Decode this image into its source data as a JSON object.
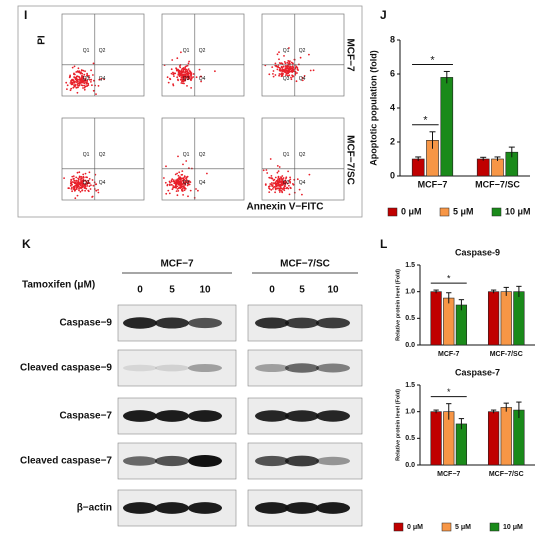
{
  "panel_labels": [
    "I",
    "J",
    "K",
    "L"
  ],
  "flow": {
    "y_label": "PI",
    "x_label": "Annexin V−FITC",
    "rows": [
      "MCF−7",
      "MCF−7/SC"
    ],
    "quadrants": [
      "Q1",
      "Q2",
      "Q3",
      "Q4"
    ]
  },
  "blot": {
    "treatment_label": "Tamoxifen (μM)",
    "groups": [
      "MCF−7",
      "MCF−7/SC"
    ],
    "doses": [
      "0",
      "5",
      "10"
    ],
    "bands": [
      "Caspase−9",
      "Cleaved caspase−9",
      "Caspase−7",
      "Cleaved caspase−7",
      "β−actin"
    ]
  },
  "chart_data": [
    {
      "type": "bar",
      "y_label": "Apoptotic population (fold)",
      "categories": [
        "MCF−7",
        "MCF−7/SC"
      ],
      "ylim": [
        0,
        8
      ],
      "yticks": [
        0,
        2,
        4,
        6,
        8
      ],
      "legend": "bottom",
      "series": [
        {
          "name": "0 μM",
          "color": "#c00000",
          "values": [
            1.0,
            1.0
          ],
          "errors": [
            0.12,
            0.1
          ]
        },
        {
          "name": "5 μM",
          "color": "#f79646",
          "values": [
            2.1,
            1.0
          ],
          "errors": [
            0.5,
            0.12
          ]
        },
        {
          "name": "10 μM",
          "color": "#1a8a1a",
          "values": [
            5.8,
            1.4
          ],
          "errors": [
            0.35,
            0.3
          ]
        }
      ],
      "annotations": [
        {
          "text": "*",
          "category": 0,
          "series": [
            0,
            1
          ]
        },
        {
          "text": "*",
          "category": 0,
          "series": [
            0,
            2
          ]
        }
      ]
    },
    {
      "type": "bar",
      "title": "Caspase-9",
      "y_label": "Relative protein level (Fold)",
      "categories": [
        "MCF-7",
        "MCF-7/SC"
      ],
      "ylim": [
        0,
        1.5
      ],
      "yticks": [
        {
          "value": 0,
          "label": "0.0"
        },
        {
          "value": 0.5,
          "label": "0.5"
        },
        {
          "value": 1,
          "label": "1.0"
        },
        {
          "value": 1.5,
          "label": "1.5"
        }
      ],
      "series": [
        {
          "color": "#c00000",
          "values": [
            1.0,
            1.0
          ],
          "errors": [
            0.03,
            0.03
          ]
        },
        {
          "color": "#f79646",
          "values": [
            0.88,
            1.0
          ],
          "errors": [
            0.1,
            0.08
          ]
        },
        {
          "color": "#1a8a1a",
          "values": [
            0.75,
            1.0
          ],
          "errors": [
            0.1,
            0.1
          ]
        }
      ],
      "annotations": [
        {
          "text": "*",
          "category": 0,
          "series": [
            0,
            2
          ]
        }
      ]
    },
    {
      "type": "bar",
      "title": "Caspase-7",
      "y_label": "Relative protein level (Fold)",
      "categories": [
        "MCF−7",
        "MCF−7/SC"
      ],
      "ylim": [
        0,
        1.5
      ],
      "yticks": [
        {
          "value": 0,
          "label": "0.0"
        },
        {
          "value": 0.5,
          "label": "0.5"
        },
        {
          "value": 1,
          "label": "1.0"
        },
        {
          "value": 1.5,
          "label": "1.5"
        }
      ],
      "legend": "bottom",
      "series": [
        {
          "name": "0 μM",
          "color": "#c00000",
          "values": [
            1.0,
            1.0
          ],
          "errors": [
            0.03,
            0.03
          ]
        },
        {
          "name": "5 μM",
          "color": "#f79646",
          "values": [
            1.0,
            1.08
          ],
          "errors": [
            0.15,
            0.08
          ]
        },
        {
          "name": "10 μM",
          "color": "#1a8a1a",
          "values": [
            0.77,
            1.03
          ],
          "errors": [
            0.1,
            0.15
          ]
        }
      ],
      "annotations": [
        {
          "text": "*",
          "category": 0,
          "series": [
            0,
            2
          ]
        }
      ]
    }
  ]
}
